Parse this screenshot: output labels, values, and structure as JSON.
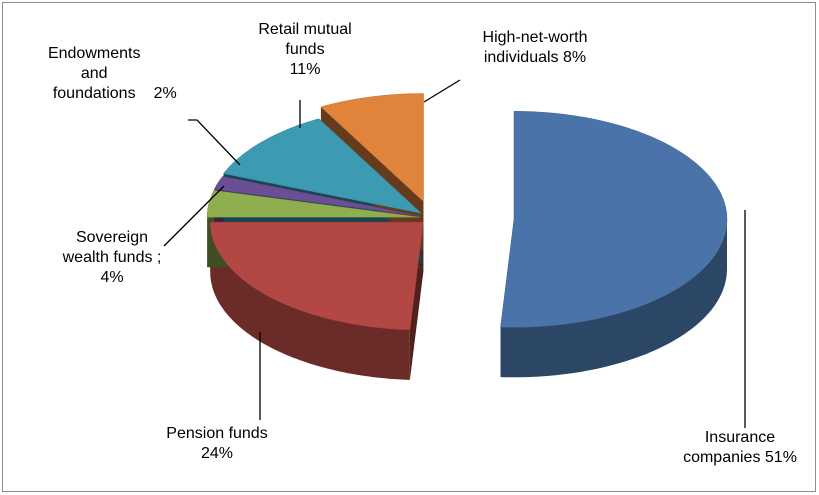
{
  "chart_data": {
    "type": "pie",
    "categories": [
      "Insurance companies",
      "Pension funds",
      "Sovereign wealth funds ;",
      "Endowments and foundations",
      "Retail mutual funds",
      "High-net-worth individuals"
    ],
    "values": [
      51,
      24,
      4,
      2,
      11,
      8
    ],
    "value_labels": [
      "51%",
      "24%",
      "4%",
      "2%",
      "11%",
      "8%"
    ],
    "colors": [
      "#4a74a9",
      "#b34744",
      "#8fae50",
      "#6b4f94",
      "#3c9ab3",
      "#e0843c"
    ]
  }
}
